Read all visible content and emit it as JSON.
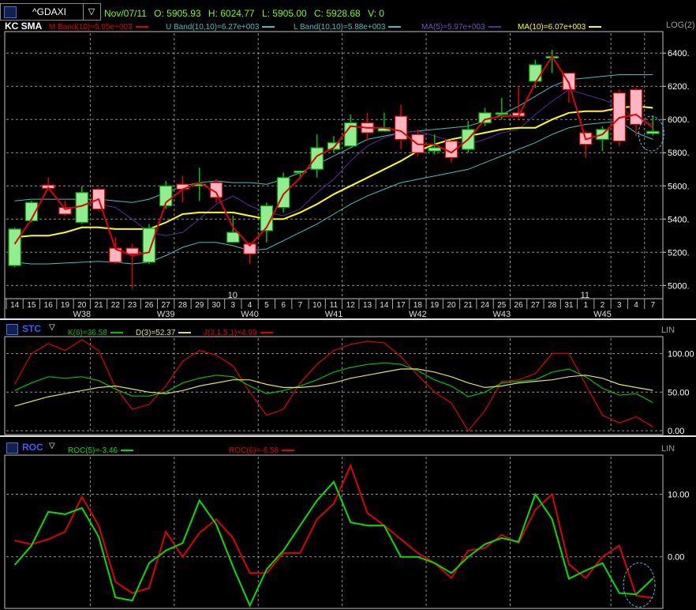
{
  "header": {
    "symbol": "^GDAXI",
    "date": "Nov/07/11",
    "open": "O: 5905.93",
    "high": "H: 6024.77",
    "low": "L: 5905.00",
    "close": "C: 5928.68",
    "volume": "V: 0"
  },
  "colors": {
    "up_fill": "#90ee90",
    "down_fill": "#ffb6c1",
    "wick_up": "#00c000",
    "wick_down": "#e00000",
    "mband": "#e00000",
    "band": "#40c0c0",
    "ma5": "#5a2aa0",
    "ma10": "#ffff00",
    "k": "#00c000",
    "d": "#e0e060",
    "j": "#e00000",
    "roc5": "#00e000",
    "roc6": "#e00000",
    "grid": "#bfbfbf",
    "panel_border": "#c0c0c0"
  },
  "main_panel": {
    "title": "KC SMA",
    "legend": [
      {
        "label": "M Band(10)=5.95e+003",
        "color": "#e00000"
      },
      {
        "label": "U Band(10,10)=6.27e+003",
        "color": "#40c0c0"
      },
      {
        "label": "L Band(10,10)=5.88e+003",
        "color": "#40c0c0"
      },
      {
        "label": "MA(5)=5.97e+003",
        "color": "#5a2aa0"
      },
      {
        "label": "MA(10)=6.07e+003",
        "color": "#ffff00"
      }
    ],
    "scale_label": "LOG(2)"
  },
  "stc_panel": {
    "title": "STC",
    "legend": [
      {
        "label": "K(6)=36.58",
        "color": "#00c000"
      },
      {
        "label": "D(3)=52.37",
        "color": "#e0e060"
      },
      {
        "label": "J(3,1,5,1)=4.99",
        "color": "#e00000"
      }
    ],
    "scale_label": "LIN"
  },
  "roc_panel": {
    "title": "ROC",
    "legend": [
      {
        "label": "ROC(5)=-3.46",
        "color": "#00e000"
      },
      {
        "label": "ROC(6)=-6.58",
        "color": "#e00000"
      }
    ],
    "scale_label": "LIN"
  },
  "chart_data": [
    {
      "type": "candlestick",
      "title": "KC SMA",
      "x": [
        "14",
        "15",
        "16",
        "19",
        "20",
        "21",
        "22",
        "23",
        "26",
        "27",
        "28",
        "29",
        "30",
        "3",
        "4",
        "5",
        "6",
        "7",
        "10",
        "11",
        "12",
        "13",
        "14",
        "17",
        "18",
        "19",
        "20",
        "21",
        "24",
        "25",
        "26",
        "27",
        "28",
        "31",
        "1",
        "2",
        "3",
        "4",
        "7"
      ],
      "month_labels": [
        {
          "label": "10",
          "at": 13
        },
        {
          "label": "11",
          "at": 34
        }
      ],
      "week_labels": [
        {
          "label": "W38",
          "at": 5
        },
        {
          "label": "W39",
          "at": 10
        },
        {
          "label": "W40",
          "at": 15
        },
        {
          "label": "W41",
          "at": 20
        },
        {
          "label": "W42",
          "at": 25
        },
        {
          "label": "W43",
          "at": 30
        },
        {
          "label": "W45",
          "at": 36
        }
      ],
      "yticks": [
        5000,
        5200,
        5400,
        5600,
        5800,
        6000,
        6200,
        6400
      ],
      "ylim": [
        4930,
        6520
      ],
      "open": [
        5120,
        5390,
        5605,
        5470,
        5380,
        5580,
        5225,
        5225,
        5140,
        5480,
        5610,
        5600,
        5620,
        5260,
        5250,
        5330,
        5470,
        5680,
        5700,
        5820,
        5840,
        5980,
        5930,
        6020,
        5910,
        5810,
        5870,
        5820,
        5980,
        6040,
        6040,
        6230,
        6380,
        6280,
        5920,
        5880,
        6160,
        6180,
        5915
      ],
      "high": [
        5350,
        5510,
        5650,
        5510,
        5600,
        5590,
        5290,
        5250,
        5370,
        5630,
        5660,
        5710,
        5640,
        5420,
        5260,
        5500,
        5680,
        5690,
        5910,
        5900,
        6030,
        6040,
        6040,
        6090,
        5940,
        5910,
        5880,
        5990,
        6070,
        6130,
        6200,
        6360,
        6420,
        6280,
        5930,
        5960,
        6180,
        6190,
        6024.77
      ],
      "low": [
        5110,
        5380,
        5580,
        5420,
        5370,
        5450,
        5130,
        4980,
        5130,
        5460,
        5500,
        5510,
        5500,
        5260,
        5130,
        5260,
        5440,
        5640,
        5650,
        5800,
        5840,
        5870,
        5930,
        5820,
        5780,
        5790,
        5740,
        5800,
        5960,
        6000,
        6000,
        6190,
        6280,
        6100,
        5770,
        5810,
        5840,
        5900,
        5905.0
      ],
      "close": [
        5340,
        5500,
        5585,
        5430,
        5560,
        5460,
        5140,
        5190,
        5345,
        5600,
        5580,
        5610,
        5530,
        5320,
        5190,
        5480,
        5650,
        5690,
        5830,
        5860,
        5980,
        5920,
        5950,
        5880,
        5800,
        5830,
        5770,
        5940,
        6040,
        6040,
        6020,
        6330,
        6380,
        6180,
        5850,
        5940,
        5870,
        5970,
        5928.68
      ],
      "series": [
        {
          "name": "M Band(10)",
          "values": [
            5250,
            5400,
            5590,
            5460,
            5480,
            5520,
            5220,
            5180,
            5200,
            5500,
            5580,
            5620,
            5560,
            5350,
            5240,
            5350,
            5550,
            5650,
            5780,
            5830,
            5960,
            5950,
            5950,
            5930,
            5850,
            5850,
            5800,
            5880,
            6000,
            6020,
            6020,
            6220,
            6380,
            6220,
            5880,
            5910,
            6010,
            6030,
            5950
          ]
        },
        {
          "name": "U Band(10,10)",
          "values": [
            5510,
            5520,
            5520,
            5520,
            5520,
            5520,
            5510,
            5500,
            5520,
            5560,
            5600,
            5620,
            5630,
            5620,
            5620,
            5610,
            5640,
            5680,
            5730,
            5780,
            5830,
            5880,
            5900,
            5920,
            5930,
            5940,
            5950,
            5960,
            5990,
            6030,
            6080,
            6140,
            6200,
            6240,
            6250,
            6260,
            6270,
            6270,
            6270
          ]
        },
        {
          "name": "L Band(10,10)",
          "values": [
            5140,
            5130,
            5130,
            5135,
            5140,
            5145,
            5140,
            5130,
            5140,
            5180,
            5230,
            5260,
            5260,
            5240,
            5210,
            5220,
            5270,
            5320,
            5370,
            5430,
            5490,
            5540,
            5580,
            5620,
            5640,
            5660,
            5680,
            5700,
            5740,
            5780,
            5820,
            5860,
            5910,
            5950,
            5970,
            5980,
            5990,
            5920,
            5880
          ]
        },
        {
          "name": "MA(5)",
          "values": [
            null,
            null,
            null,
            null,
            5480,
            5490,
            5470,
            5400,
            5320,
            5300,
            5320,
            5400,
            5490,
            5540,
            5480,
            5440,
            5420,
            5460,
            5560,
            5640,
            5750,
            5840,
            5890,
            5920,
            5930,
            5900,
            5870,
            5850,
            5880,
            5920,
            5940,
            6030,
            6110,
            6180,
            6150,
            6120,
            6080,
            6000,
            5970
          ]
        },
        {
          "name": "MA(10)",
          "values": [
            5290,
            5300,
            5300,
            5320,
            5350,
            5350,
            5340,
            5340,
            5340,
            5380,
            5430,
            5440,
            5440,
            5440,
            5420,
            5400,
            5400,
            5440,
            5490,
            5550,
            5600,
            5650,
            5700,
            5750,
            5810,
            5850,
            5880,
            5900,
            5920,
            5940,
            5950,
            5950,
            6000,
            6040,
            6050,
            6050,
            6070,
            6080,
            6070
          ]
        }
      ]
    },
    {
      "type": "line",
      "title": "STC",
      "yticks": [
        0,
        50,
        100
      ],
      "ylim": [
        -3,
        120
      ],
      "series": [
        {
          "name": "K(6)",
          "values": [
            52,
            62,
            70,
            68,
            70,
            65,
            54,
            45,
            45,
            50,
            62,
            68,
            72,
            70,
            58,
            48,
            52,
            58,
            66,
            76,
            82,
            86,
            88,
            86,
            78,
            66,
            58,
            44,
            50,
            62,
            64,
            66,
            76,
            80,
            70,
            55,
            46,
            48,
            36.58
          ]
        },
        {
          "name": "D(3)",
          "values": [
            32,
            38,
            44,
            48,
            52,
            56,
            58,
            54,
            50,
            48,
            52,
            58,
            62,
            66,
            66,
            60,
            56,
            56,
            58,
            62,
            68,
            72,
            76,
            80,
            80,
            76,
            70,
            62,
            56,
            58,
            62,
            64,
            66,
            70,
            72,
            68,
            60,
            56,
            52.37
          ]
        },
        {
          "name": "J(3,1,5,1)",
          "values": [
            60,
            100,
            113,
            104,
            118,
            104,
            56,
            28,
            34,
            58,
            90,
            104,
            98,
            84,
            50,
            20,
            28,
            62,
            86,
            104,
            112,
            116,
            114,
            96,
            72,
            50,
            36,
            0,
            26,
            64,
            66,
            74,
            100,
            100,
            60,
            20,
            10,
            18,
            4.99
          ]
        }
      ]
    },
    {
      "type": "line",
      "title": "ROC",
      "yticks": [
        0,
        10
      ],
      "ylim": [
        -8,
        16
      ],
      "series": [
        {
          "name": "ROC(5)",
          "values": [
            -1.3,
            1.8,
            7.2,
            6.8,
            7.8,
            3.2,
            -6.5,
            -7.0,
            -1.0,
            1.0,
            2.2,
            9.0,
            5.2,
            -1.6,
            -7.8,
            -2.0,
            1.0,
            5.0,
            9.0,
            12.0,
            5.5,
            5.0,
            5.0,
            0,
            0,
            -1.0,
            -2.6,
            0,
            2.0,
            3.0,
            2.4,
            10.0,
            6.0,
            -3.5,
            -2.2,
            -1.0,
            -5.8,
            -6.0,
            -3.46
          ]
        },
        {
          "name": "ROC(6)",
          "values": [
            2.6,
            2.0,
            2.8,
            4.0,
            9.6,
            5.0,
            -4.0,
            -5.8,
            -5.0,
            4.0,
            0,
            3.8,
            6.0,
            3.0,
            -2.6,
            -2.6,
            0.6,
            0.6,
            6.0,
            8.5,
            14.6,
            7.0,
            5.0,
            2.8,
            0.6,
            -1.0,
            -3.4,
            1.0,
            1.4,
            3.5,
            2.2,
            7.5,
            10.0,
            -1.2,
            -3.4,
            0,
            1.8,
            -6.2,
            -6.58
          ]
        }
      ]
    }
  ]
}
